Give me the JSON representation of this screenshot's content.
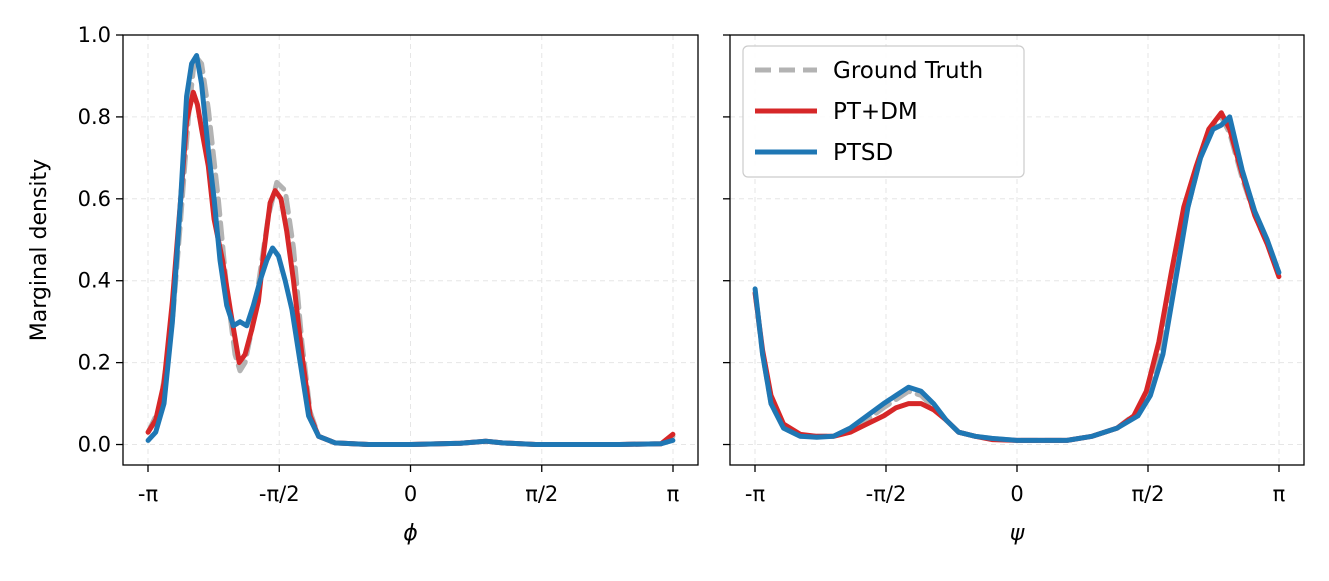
{
  "colors": {
    "ground_truth": "#b3b3b3",
    "pt_dm": "#d62728",
    "ptsd": "#1f77b4",
    "grid": "#e6e6e6"
  },
  "chart_data": [
    {
      "type": "line",
      "panel": "left",
      "xlabel": "ϕ",
      "ylabel": "Marginal density",
      "xlim": [
        -3.1416,
        3.1416
      ],
      "ylim": [
        -0.05,
        1.0
      ],
      "xticks": [
        -3.1416,
        -1.5708,
        0,
        1.5708,
        3.1416
      ],
      "xtick_labels": [
        "-π",
        "-π/2",
        "0",
        "π/2",
        "π"
      ],
      "yticks": [
        0.0,
        0.2,
        0.4,
        0.6,
        0.8,
        1.0
      ],
      "ytick_labels": [
        "0.0",
        "0.2",
        "0.4",
        "0.6",
        "0.8",
        "1.0"
      ],
      "grid": true,
      "series": [
        {
          "name": "Ground Truth",
          "style": "dashed",
          "points": [
            [
              -3.14,
              0.03
            ],
            [
              -3.0,
              0.09
            ],
            [
              -2.85,
              0.3
            ],
            [
              -2.75,
              0.55
            ],
            [
              -2.65,
              0.82
            ],
            [
              -2.58,
              0.95
            ],
            [
              -2.5,
              0.93
            ],
            [
              -2.42,
              0.82
            ],
            [
              -2.3,
              0.6
            ],
            [
              -2.2,
              0.38
            ],
            [
              -2.1,
              0.22
            ],
            [
              -2.04,
              0.18
            ],
            [
              -1.98,
              0.2
            ],
            [
              -1.9,
              0.28
            ],
            [
              -1.8,
              0.42
            ],
            [
              -1.7,
              0.56
            ],
            [
              -1.6,
              0.64
            ],
            [
              -1.5,
              0.62
            ],
            [
              -1.4,
              0.48
            ],
            [
              -1.3,
              0.25
            ],
            [
              -1.2,
              0.08
            ],
            [
              -1.1,
              0.02
            ],
            [
              -0.9,
              0.004
            ],
            [
              -0.5,
              0.0
            ],
            [
              0,
              0.0
            ],
            [
              0.6,
              0.003
            ],
            [
              0.9,
              0.008
            ],
            [
              1.1,
              0.004
            ],
            [
              1.5,
              0.0
            ],
            [
              2.5,
              0.0
            ],
            [
              3.0,
              0.002
            ],
            [
              3.14,
              0.02
            ]
          ]
        },
        {
          "name": "PT+DM",
          "style": "solid",
          "points": [
            [
              -3.14,
              0.03
            ],
            [
              -3.05,
              0.06
            ],
            [
              -2.95,
              0.15
            ],
            [
              -2.85,
              0.35
            ],
            [
              -2.75,
              0.6
            ],
            [
              -2.68,
              0.79
            ],
            [
              -2.6,
              0.86
            ],
            [
              -2.55,
              0.83
            ],
            [
              -2.5,
              0.77
            ],
            [
              -2.42,
              0.68
            ],
            [
              -2.35,
              0.55
            ],
            [
              -2.25,
              0.45
            ],
            [
              -2.15,
              0.32
            ],
            [
              -2.05,
              0.2
            ],
            [
              -1.98,
              0.22
            ],
            [
              -1.9,
              0.28
            ],
            [
              -1.82,
              0.35
            ],
            [
              -1.75,
              0.48
            ],
            [
              -1.68,
              0.59
            ],
            [
              -1.62,
              0.62
            ],
            [
              -1.55,
              0.6
            ],
            [
              -1.48,
              0.52
            ],
            [
              -1.4,
              0.4
            ],
            [
              -1.3,
              0.22
            ],
            [
              -1.2,
              0.07
            ],
            [
              -1.1,
              0.02
            ],
            [
              -0.9,
              0.004
            ],
            [
              -0.5,
              0.0
            ],
            [
              0,
              0.0
            ],
            [
              0.6,
              0.003
            ],
            [
              0.9,
              0.008
            ],
            [
              1.1,
              0.004
            ],
            [
              1.5,
              0.0
            ],
            [
              2.5,
              0.0
            ],
            [
              3.0,
              0.002
            ],
            [
              3.14,
              0.025
            ]
          ]
        },
        {
          "name": "PTSD",
          "style": "solid",
          "points": [
            [
              -3.14,
              0.01
            ],
            [
              -3.05,
              0.03
            ],
            [
              -2.95,
              0.1
            ],
            [
              -2.85,
              0.3
            ],
            [
              -2.75,
              0.6
            ],
            [
              -2.68,
              0.85
            ],
            [
              -2.62,
              0.93
            ],
            [
              -2.56,
              0.95
            ],
            [
              -2.5,
              0.88
            ],
            [
              -2.42,
              0.72
            ],
            [
              -2.35,
              0.6
            ],
            [
              -2.28,
              0.45
            ],
            [
              -2.2,
              0.34
            ],
            [
              -2.12,
              0.29
            ],
            [
              -2.04,
              0.3
            ],
            [
              -1.96,
              0.29
            ],
            [
              -1.88,
              0.34
            ],
            [
              -1.8,
              0.4
            ],
            [
              -1.72,
              0.45
            ],
            [
              -1.65,
              0.48
            ],
            [
              -1.58,
              0.46
            ],
            [
              -1.5,
              0.4
            ],
            [
              -1.42,
              0.33
            ],
            [
              -1.32,
              0.2
            ],
            [
              -1.22,
              0.07
            ],
            [
              -1.1,
              0.02
            ],
            [
              -0.9,
              0.004
            ],
            [
              -0.5,
              0.0
            ],
            [
              0,
              0.0
            ],
            [
              0.6,
              0.003
            ],
            [
              0.9,
              0.008
            ],
            [
              1.1,
              0.004
            ],
            [
              1.5,
              0.0
            ],
            [
              2.5,
              0.0
            ],
            [
              3.0,
              0.002
            ],
            [
              3.14,
              0.01
            ]
          ]
        }
      ]
    },
    {
      "type": "line",
      "panel": "right",
      "xlabel": "ψ",
      "ylabel": "",
      "xlim": [
        -3.1416,
        3.1416
      ],
      "ylim": [
        -0.05,
        1.0
      ],
      "xticks": [
        -3.1416,
        -1.5708,
        0,
        1.5708,
        3.1416
      ],
      "xtick_labels": [
        "-π",
        "-π/2",
        "0",
        "π/2",
        "π"
      ],
      "yticks": [
        0.0,
        0.2,
        0.4,
        0.6,
        0.8,
        1.0
      ],
      "ytick_labels": [
        "",
        "",
        "",
        "",
        "",
        ""
      ],
      "grid": true,
      "legend": {
        "location": "upper-left",
        "entries": [
          "Ground Truth",
          "PT+DM",
          "PTSD"
        ]
      },
      "series": [
        {
          "name": "Ground Truth",
          "style": "dashed",
          "points": [
            [
              -3.14,
              0.37
            ],
            [
              -3.05,
              0.22
            ],
            [
              -2.95,
              0.1
            ],
            [
              -2.8,
              0.04
            ],
            [
              -2.6,
              0.02
            ],
            [
              -2.4,
              0.02
            ],
            [
              -2.2,
              0.02
            ],
            [
              -2.0,
              0.04
            ],
            [
              -1.8,
              0.06
            ],
            [
              -1.6,
              0.09
            ],
            [
              -1.45,
              0.11
            ],
            [
              -1.3,
              0.13
            ],
            [
              -1.15,
              0.12
            ],
            [
              -1.0,
              0.09
            ],
            [
              -0.85,
              0.06
            ],
            [
              -0.7,
              0.03
            ],
            [
              -0.5,
              0.02
            ],
            [
              -0.3,
              0.015
            ],
            [
              0,
              0.01
            ],
            [
              0.3,
              0.01
            ],
            [
              0.6,
              0.01
            ],
            [
              0.9,
              0.02
            ],
            [
              1.2,
              0.04
            ],
            [
              1.45,
              0.08
            ],
            [
              1.6,
              0.14
            ],
            [
              1.75,
              0.25
            ],
            [
              1.9,
              0.42
            ],
            [
              2.05,
              0.58
            ],
            [
              2.2,
              0.7
            ],
            [
              2.35,
              0.78
            ],
            [
              2.45,
              0.8
            ],
            [
              2.55,
              0.76
            ],
            [
              2.7,
              0.65
            ],
            [
              2.85,
              0.56
            ],
            [
              3.0,
              0.49
            ],
            [
              3.14,
              0.42
            ]
          ]
        },
        {
          "name": "PT+DM",
          "style": "solid",
          "points": [
            [
              -3.14,
              0.37
            ],
            [
              -3.05,
              0.23
            ],
            [
              -2.95,
              0.12
            ],
            [
              -2.8,
              0.05
            ],
            [
              -2.6,
              0.025
            ],
            [
              -2.4,
              0.02
            ],
            [
              -2.2,
              0.02
            ],
            [
              -2.0,
              0.03
            ],
            [
              -1.8,
              0.05
            ],
            [
              -1.6,
              0.07
            ],
            [
              -1.45,
              0.09
            ],
            [
              -1.3,
              0.1
            ],
            [
              -1.15,
              0.1
            ],
            [
              -1.0,
              0.085
            ],
            [
              -0.85,
              0.06
            ],
            [
              -0.7,
              0.03
            ],
            [
              -0.5,
              0.02
            ],
            [
              -0.3,
              0.012
            ],
            [
              0,
              0.01
            ],
            [
              0.3,
              0.01
            ],
            [
              0.6,
              0.01
            ],
            [
              0.9,
              0.02
            ],
            [
              1.2,
              0.04
            ],
            [
              1.4,
              0.07
            ],
            [
              1.55,
              0.13
            ],
            [
              1.7,
              0.25
            ],
            [
              1.85,
              0.42
            ],
            [
              2.0,
              0.58
            ],
            [
              2.15,
              0.68
            ],
            [
              2.3,
              0.77
            ],
            [
              2.45,
              0.81
            ],
            [
              2.55,
              0.77
            ],
            [
              2.7,
              0.66
            ],
            [
              2.85,
              0.56
            ],
            [
              3.0,
              0.49
            ],
            [
              3.14,
              0.41
            ]
          ]
        },
        {
          "name": "PTSD",
          "style": "solid",
          "points": [
            [
              -3.14,
              0.38
            ],
            [
              -3.05,
              0.22
            ],
            [
              -2.95,
              0.1
            ],
            [
              -2.8,
              0.04
            ],
            [
              -2.6,
              0.02
            ],
            [
              -2.4,
              0.018
            ],
            [
              -2.2,
              0.02
            ],
            [
              -2.0,
              0.04
            ],
            [
              -1.8,
              0.07
            ],
            [
              -1.6,
              0.1
            ],
            [
              -1.45,
              0.12
            ],
            [
              -1.3,
              0.14
            ],
            [
              -1.15,
              0.13
            ],
            [
              -1.0,
              0.1
            ],
            [
              -0.85,
              0.06
            ],
            [
              -0.7,
              0.03
            ],
            [
              -0.5,
              0.02
            ],
            [
              -0.3,
              0.015
            ],
            [
              0,
              0.01
            ],
            [
              0.3,
              0.01
            ],
            [
              0.6,
              0.01
            ],
            [
              0.9,
              0.02
            ],
            [
              1.2,
              0.04
            ],
            [
              1.45,
              0.07
            ],
            [
              1.6,
              0.12
            ],
            [
              1.75,
              0.22
            ],
            [
              1.9,
              0.4
            ],
            [
              2.05,
              0.58
            ],
            [
              2.2,
              0.7
            ],
            [
              2.35,
              0.77
            ],
            [
              2.45,
              0.78
            ],
            [
              2.55,
              0.8
            ],
            [
              2.7,
              0.67
            ],
            [
              2.85,
              0.57
            ],
            [
              3.0,
              0.5
            ],
            [
              3.14,
              0.42
            ]
          ]
        }
      ]
    }
  ]
}
